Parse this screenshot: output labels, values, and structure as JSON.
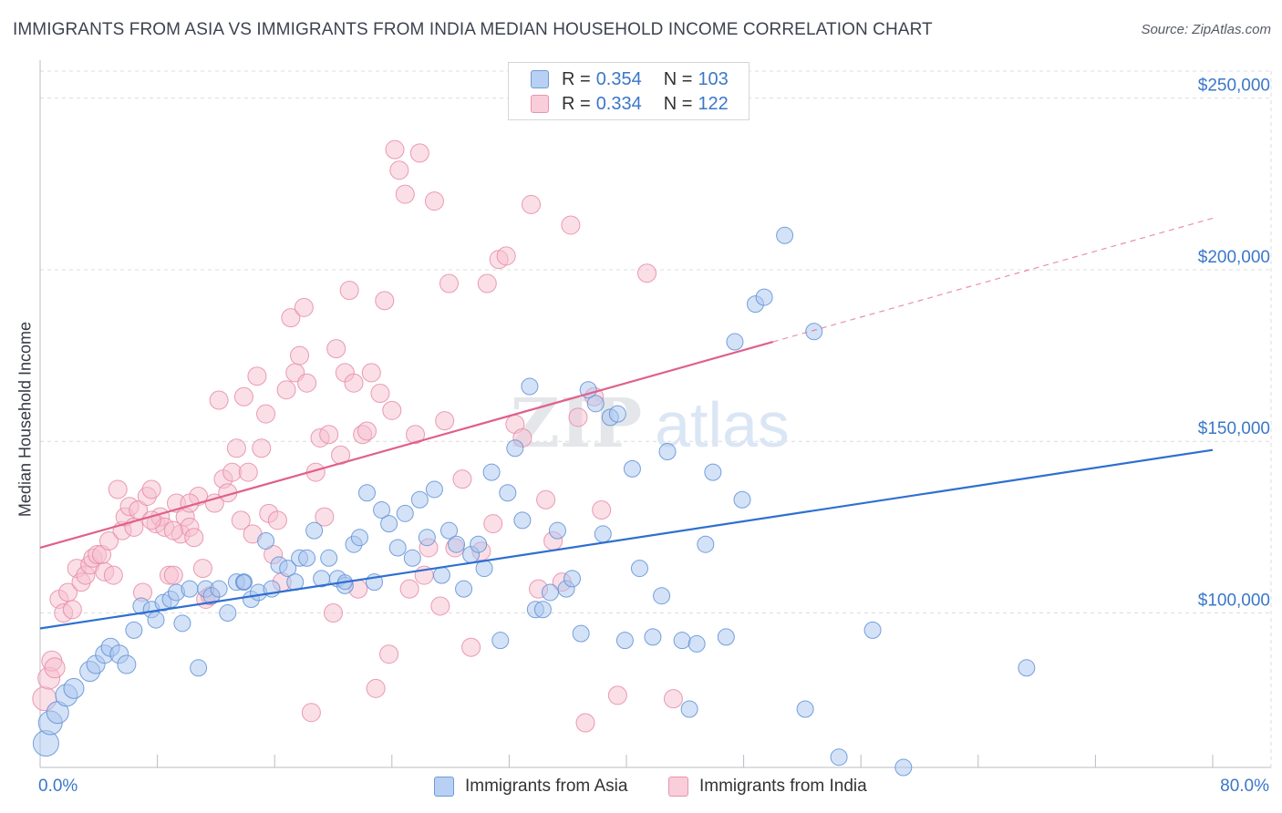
{
  "header": {
    "title": "IMMIGRANTS FROM ASIA VS IMMIGRANTS FROM INDIA MEDIAN HOUSEHOLD INCOME CORRELATION CHART",
    "source": "Source: ZipAtlas.com"
  },
  "legend_top": {
    "asia": {
      "r_label": "R =",
      "r_value": "0.354",
      "n_label": "N =",
      "n_value": "103"
    },
    "india": {
      "r_label": "R =",
      "r_value": "0.334",
      "n_label": "N =",
      "n_value": "122"
    }
  },
  "legend_bottom": {
    "asia": "Immigrants from Asia",
    "india": "Immigrants from India"
  },
  "x_axis": {
    "min_label": "0.0%",
    "max_label": "80.0%"
  },
  "watermark": {
    "zip": "ZIP",
    "atlas": "atlas"
  },
  "colors": {
    "asia_fill": "#a9c6ef",
    "asia_stroke": "#5f91d6",
    "asia_line": "#2f6fd0",
    "india_fill": "#f6bfd0",
    "india_stroke": "#e889a8",
    "india_line": "#e0608a",
    "tick_label": "#3b77c9",
    "grid": "#d9dce1"
  },
  "chart_data": {
    "type": "scatter",
    "title": "IMMIGRANTS FROM ASIA VS IMMIGRANTS FROM INDIA MEDIAN HOUSEHOLD INCOME CORRELATION CHART",
    "xlabel": "",
    "ylabel": "Median Household Income",
    "xlim": [
      0,
      80
    ],
    "ylim": [
      55000,
      260000
    ],
    "y_ticks": [
      {
        "value": 100000,
        "label": "$100,000"
      },
      {
        "value": 150000,
        "label": "$150,000"
      },
      {
        "value": 200000,
        "label": "$200,000"
      },
      {
        "value": 250000,
        "label": "$250,000"
      }
    ],
    "x_tick_values": [
      0,
      8,
      16,
      24,
      32,
      40,
      48,
      56,
      64,
      72,
      80
    ],
    "grid": true,
    "legend": "top-center",
    "series": [
      {
        "name": "Immigrants from Asia",
        "color": "#5f91d6",
        "trend": {
          "x0": 0,
          "y0": 95500,
          "x1": 80,
          "y1": 147500,
          "solid_until": 80
        },
        "points": [
          [
            0.4,
            62000,
            14
          ],
          [
            0.7,
            68000,
            13
          ],
          [
            1.2,
            71000,
            12
          ],
          [
            1.8,
            76000,
            12
          ],
          [
            2.3,
            78000,
            11
          ],
          [
            3.4,
            83000,
            11
          ],
          [
            3.8,
            85000,
            10
          ],
          [
            4.4,
            88000,
            10
          ],
          [
            4.8,
            90000,
            10
          ],
          [
            5.4,
            88000,
            10
          ],
          [
            5.9,
            85000,
            10
          ],
          [
            6.4,
            95000,
            9
          ],
          [
            6.9,
            102000,
            9
          ],
          [
            7.6,
            101000,
            9
          ],
          [
            7.9,
            98000,
            9
          ],
          [
            8.4,
            103000,
            9
          ],
          [
            8.9,
            104000,
            9
          ],
          [
            9.3,
            106000,
            9
          ],
          [
            9.7,
            97000,
            9
          ],
          [
            10.2,
            107000,
            9
          ],
          [
            10.8,
            84000,
            9
          ],
          [
            11.3,
            107000,
            9
          ],
          [
            11.7,
            105000,
            9
          ],
          [
            12.2,
            107000,
            9
          ],
          [
            12.8,
            100000,
            9
          ],
          [
            13.4,
            109000,
            9
          ],
          [
            13.9,
            109000,
            9
          ],
          [
            14.4,
            104000,
            9
          ],
          [
            14.9,
            106000,
            9
          ],
          [
            15.4,
            121000,
            9
          ],
          [
            15.8,
            107000,
            9
          ],
          [
            16.3,
            114000,
            9
          ],
          [
            16.9,
            113000,
            9
          ],
          [
            17.4,
            109000,
            9
          ],
          [
            17.7,
            116000,
            9
          ],
          [
            18.2,
            116000,
            9
          ],
          [
            18.7,
            124000,
            9
          ],
          [
            19.2,
            110000,
            9
          ],
          [
            19.7,
            116000,
            9
          ],
          [
            20.3,
            110000,
            9
          ],
          [
            20.8,
            108000,
            9
          ],
          [
            21.4,
            120000,
            9
          ],
          [
            21.8,
            122000,
            9
          ],
          [
            22.3,
            135000,
            9
          ],
          [
            22.8,
            109000,
            9
          ],
          [
            23.3,
            130000,
            9
          ],
          [
            23.8,
            126000,
            9
          ],
          [
            24.4,
            119000,
            9
          ],
          [
            24.9,
            129000,
            9
          ],
          [
            25.4,
            116000,
            9
          ],
          [
            25.9,
            133000,
            9
          ],
          [
            26.4,
            122000,
            9
          ],
          [
            26.9,
            136000,
            9
          ],
          [
            27.4,
            111000,
            9
          ],
          [
            27.9,
            124000,
            9
          ],
          [
            28.4,
            120000,
            9
          ],
          [
            28.9,
            107000,
            9
          ],
          [
            29.4,
            117000,
            9
          ],
          [
            29.9,
            120000,
            9
          ],
          [
            30.3,
            113000,
            9
          ],
          [
            30.8,
            141000,
            9
          ],
          [
            31.4,
            92000,
            9
          ],
          [
            31.9,
            135000,
            9
          ],
          [
            32.4,
            148000,
            9
          ],
          [
            32.9,
            127000,
            9
          ],
          [
            33.4,
            166000,
            9
          ],
          [
            33.8,
            101000,
            9
          ],
          [
            34.3,
            101000,
            9
          ],
          [
            34.8,
            106000,
            9
          ],
          [
            35.3,
            124000,
            9
          ],
          [
            35.9,
            107000,
            9
          ],
          [
            36.3,
            110000,
            9
          ],
          [
            36.9,
            94000,
            9
          ],
          [
            37.4,
            165000,
            9
          ],
          [
            37.9,
            161000,
            9
          ],
          [
            38.4,
            123000,
            9
          ],
          [
            38.9,
            157000,
            9
          ],
          [
            39.4,
            158000,
            9
          ],
          [
            39.9,
            92000,
            9
          ],
          [
            40.4,
            142000,
            9
          ],
          [
            40.9,
            113000,
            9
          ],
          [
            41.8,
            93000,
            9
          ],
          [
            42.4,
            105000,
            9
          ],
          [
            42.8,
            147000,
            9
          ],
          [
            43.8,
            92000,
            9
          ],
          [
            44.3,
            72000,
            9
          ],
          [
            44.8,
            91000,
            9
          ],
          [
            45.4,
            120000,
            9
          ],
          [
            45.9,
            141000,
            9
          ],
          [
            46.8,
            93000,
            9
          ],
          [
            47.4,
            179000,
            9
          ],
          [
            47.9,
            133000,
            9
          ],
          [
            48.8,
            190000,
            9
          ],
          [
            49.4,
            192000,
            9
          ],
          [
            50.8,
            210000,
            9
          ],
          [
            52.8,
            182000,
            9
          ],
          [
            54.5,
            58000,
            9
          ],
          [
            56.8,
            95000,
            9
          ],
          [
            58.9,
            55000,
            9
          ],
          [
            67.3,
            84000,
            9
          ],
          [
            52.2,
            72000,
            9
          ],
          [
            13.9,
            109000,
            8
          ],
          [
            20.8,
            109000,
            8
          ]
        ]
      },
      {
        "name": "Immigrants from India",
        "color": "#e889a8",
        "trend": {
          "x0": 0,
          "y0": 119000,
          "x1": 80,
          "y1": 215000,
          "solid_until": 50
        },
        "points": [
          [
            0.3,
            75000,
            13
          ],
          [
            0.6,
            81000,
            12
          ],
          [
            0.8,
            86000,
            11
          ],
          [
            1.0,
            84000,
            11
          ],
          [
            1.3,
            104000,
            10
          ],
          [
            1.6,
            100000,
            10
          ],
          [
            1.9,
            106000,
            10
          ],
          [
            2.2,
            101000,
            10
          ],
          [
            2.5,
            113000,
            10
          ],
          [
            2.8,
            109000,
            10
          ],
          [
            3.1,
            111000,
            10
          ],
          [
            3.4,
            114000,
            10
          ],
          [
            3.6,
            116000,
            10
          ],
          [
            3.9,
            117000,
            10
          ],
          [
            4.2,
            117000,
            10
          ],
          [
            4.4,
            112000,
            10
          ],
          [
            4.7,
            121000,
            10
          ],
          [
            5.0,
            111000,
            10
          ],
          [
            5.3,
            136000,
            10
          ],
          [
            5.6,
            124000,
            10
          ],
          [
            5.8,
            128000,
            10
          ],
          [
            6.1,
            131000,
            10
          ],
          [
            6.4,
            125000,
            10
          ],
          [
            6.7,
            130000,
            10
          ],
          [
            7.0,
            106000,
            10
          ],
          [
            7.3,
            134000,
            10
          ],
          [
            7.6,
            136000,
            10
          ],
          [
            7.9,
            126000,
            10
          ],
          [
            8.2,
            128000,
            10
          ],
          [
            8.5,
            125000,
            10
          ],
          [
            8.8,
            111000,
            10
          ],
          [
            9.1,
            111000,
            10
          ],
          [
            9.3,
            132000,
            10
          ],
          [
            9.6,
            123000,
            10
          ],
          [
            9.9,
            128000,
            10
          ],
          [
            10.2,
            125000,
            10
          ],
          [
            10.5,
            122000,
            10
          ],
          [
            10.8,
            134000,
            10
          ],
          [
            11.1,
            113000,
            10
          ],
          [
            11.3,
            104000,
            10
          ],
          [
            11.6,
            105000,
            10
          ],
          [
            11.9,
            132000,
            10
          ],
          [
            12.2,
            162000,
            10
          ],
          [
            12.5,
            139000,
            10
          ],
          [
            12.8,
            135000,
            10
          ],
          [
            13.1,
            141000,
            10
          ],
          [
            13.4,
            148000,
            10
          ],
          [
            13.7,
            127000,
            10
          ],
          [
            13.9,
            163000,
            10
          ],
          [
            14.2,
            141000,
            10
          ],
          [
            14.5,
            123000,
            10
          ],
          [
            14.8,
            169000,
            10
          ],
          [
            15.1,
            148000,
            10
          ],
          [
            15.4,
            158000,
            10
          ],
          [
            15.6,
            129000,
            10
          ],
          [
            15.9,
            117000,
            10
          ],
          [
            16.2,
            127000,
            10
          ],
          [
            16.5,
            109000,
            10
          ],
          [
            16.8,
            165000,
            10
          ],
          [
            17.1,
            186000,
            10
          ],
          [
            17.4,
            170000,
            10
          ],
          [
            17.7,
            175000,
            10
          ],
          [
            18.0,
            189000,
            10
          ],
          [
            18.2,
            167000,
            10
          ],
          [
            18.5,
            71000,
            10
          ],
          [
            18.8,
            141000,
            10
          ],
          [
            19.1,
            151000,
            10
          ],
          [
            19.4,
            128000,
            10
          ],
          [
            19.7,
            152000,
            10
          ],
          [
            20.0,
            100000,
            10
          ],
          [
            20.2,
            177000,
            10
          ],
          [
            20.5,
            146000,
            10
          ],
          [
            20.8,
            170000,
            10
          ],
          [
            21.1,
            194000,
            10
          ],
          [
            21.4,
            167000,
            10
          ],
          [
            21.7,
            107000,
            10
          ],
          [
            22.0,
            152000,
            10
          ],
          [
            22.3,
            153000,
            10
          ],
          [
            22.6,
            170000,
            10
          ],
          [
            22.9,
            78000,
            10
          ],
          [
            23.2,
            164000,
            10
          ],
          [
            23.5,
            191000,
            10
          ],
          [
            23.8,
            88000,
            10
          ],
          [
            24.0,
            159000,
            10
          ],
          [
            24.2,
            235000,
            10
          ],
          [
            24.5,
            229000,
            10
          ],
          [
            24.9,
            222000,
            10
          ],
          [
            25.2,
            107000,
            10
          ],
          [
            25.6,
            152000,
            10
          ],
          [
            25.9,
            234000,
            10
          ],
          [
            26.2,
            111000,
            10
          ],
          [
            26.5,
            119000,
            10
          ],
          [
            26.9,
            220000,
            10
          ],
          [
            27.3,
            102000,
            10
          ],
          [
            27.6,
            156000,
            10
          ],
          [
            27.9,
            196000,
            10
          ],
          [
            28.3,
            119000,
            10
          ],
          [
            28.8,
            139000,
            10
          ],
          [
            29.4,
            90000,
            10
          ],
          [
            30.1,
            118000,
            10
          ],
          [
            30.5,
            196000,
            10
          ],
          [
            30.9,
            126000,
            10
          ],
          [
            31.3,
            203000,
            10
          ],
          [
            31.8,
            204000,
            10
          ],
          [
            32.4,
            155000,
            10
          ],
          [
            32.9,
            151000,
            10
          ],
          [
            33.5,
            219000,
            10
          ],
          [
            34.0,
            107000,
            10
          ],
          [
            34.5,
            133000,
            10
          ],
          [
            35.0,
            121000,
            10
          ],
          [
            35.6,
            109000,
            10
          ],
          [
            36.2,
            213000,
            10
          ],
          [
            36.7,
            157000,
            10
          ],
          [
            37.2,
            68000,
            10
          ],
          [
            37.8,
            163000,
            10
          ],
          [
            38.3,
            130000,
            10
          ],
          [
            39.4,
            76000,
            10
          ],
          [
            41.4,
            199000,
            10
          ],
          [
            43.2,
            75000,
            10
          ],
          [
            7.6,
            127000,
            10
          ],
          [
            9.1,
            124000,
            10
          ],
          [
            10.2,
            132000,
            10
          ]
        ]
      }
    ]
  }
}
